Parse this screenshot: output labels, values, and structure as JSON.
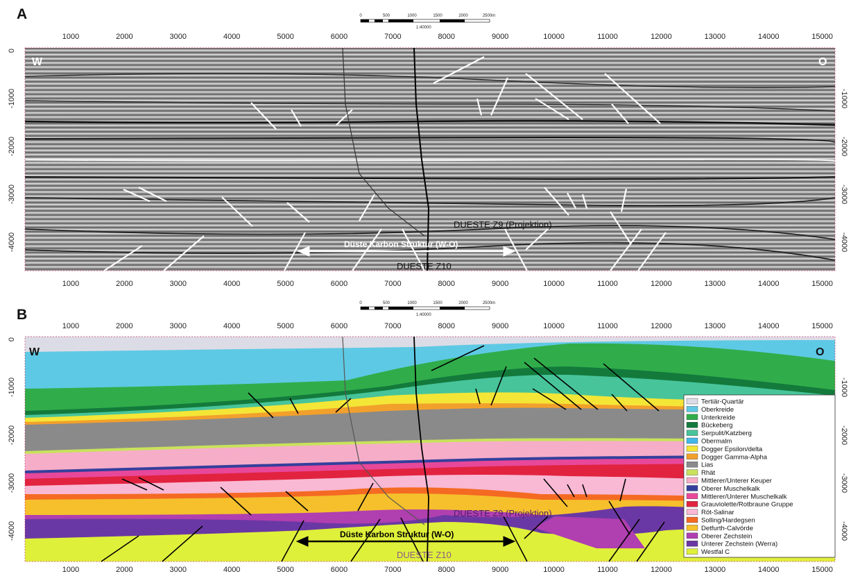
{
  "panels": [
    {
      "letter": "A",
      "west": "W",
      "east": "O",
      "well_z9": "DUESTE Z9 (Projektion)",
      "well_z10": "DUESTE Z10",
      "arrow_label": "Düste Karbon Struktur (W-O)"
    },
    {
      "letter": "B",
      "west": "W",
      "east": "O",
      "well_z9": "DUESTE Z9 (Projektion)",
      "well_z10": "DUESTE Z10",
      "arrow_label": "Düste Karbon Struktur (W-O)"
    }
  ],
  "scale_bar": {
    "ticks": [
      "0",
      "500",
      "1000",
      "1500",
      "2000",
      "2500m"
    ],
    "ratio": "1:40000"
  },
  "x_ticks": [
    "1000",
    "2000",
    "3000",
    "4000",
    "5000",
    "6000",
    "7000",
    "8000",
    "9000",
    "10000",
    "11000",
    "12000",
    "13000",
    "14000",
    "15000"
  ],
  "y_ticks_left": [
    "0",
    "-1000",
    "-2000",
    "-3000",
    "-4000"
  ],
  "y_ticks_right": [
    "-1000",
    "-2000",
    "-3000",
    "-4000"
  ],
  "legend": [
    {
      "label": "Tertiär-Quartär",
      "color": "#dcdce6"
    },
    {
      "label": "Oberkreide",
      "color": "#5ec9e4"
    },
    {
      "label": "Unterkreide",
      "color": "#30ad4a"
    },
    {
      "label": "Bückeberg",
      "color": "#137a3c"
    },
    {
      "label": "Serpulit/Katzberg",
      "color": "#47c49a"
    },
    {
      "label": "Obermalm",
      "color": "#42b7e8"
    },
    {
      "label": "Dogger Epsilon/delta",
      "color": "#f4e636"
    },
    {
      "label": "Dogger Gamma-Alpha",
      "color": "#f2a02c"
    },
    {
      "label": "Lias",
      "color": "#8a8a8a"
    },
    {
      "label": "Rhät",
      "color": "#c9e25c"
    },
    {
      "label": "Mittlerer/Unterer Keuper",
      "color": "#f6adc8"
    },
    {
      "label": "Oberer Muschelkalk",
      "color": "#343f9c"
    },
    {
      "label": "Mittlerer/Unterer Muschelkalk",
      "color": "#e8489a"
    },
    {
      "label": "Grauviolette/Rotbraune Gruppe",
      "color": "#e1233f"
    },
    {
      "label": "Röt-Salinar",
      "color": "#f9b8d4"
    },
    {
      "label": "Solling/Hardegsen",
      "color": "#f46a23"
    },
    {
      "label": "Detfurth-Calvörde",
      "color": "#f5c02c"
    },
    {
      "label": "Oberer Zechstein",
      "color": "#b03fb0"
    },
    {
      "label": "Unterer Zechstein (Werra)",
      "color": "#6a38a4"
    },
    {
      "label": "Westfal C",
      "color": "#dff03a"
    }
  ]
}
